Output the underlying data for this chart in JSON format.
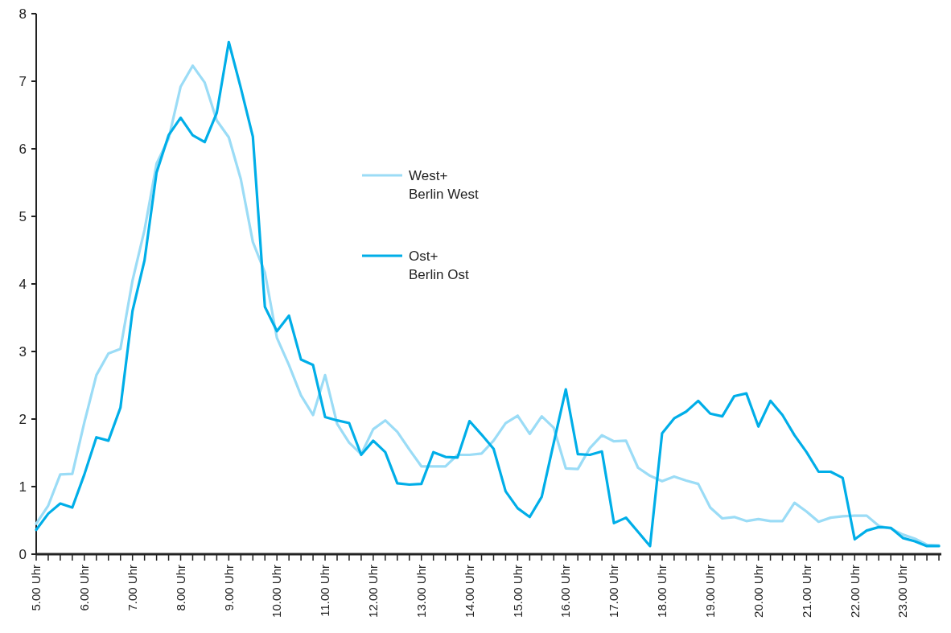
{
  "chart_data": {
    "type": "line",
    "x": [
      5,
      5.25,
      5.5,
      5.75,
      6,
      6.25,
      6.5,
      6.75,
      7,
      7.25,
      7.5,
      7.75,
      8,
      8.25,
      8.5,
      8.75,
      9,
      9.25,
      9.5,
      9.75,
      10,
      10.25,
      10.5,
      10.75,
      11,
      11.25,
      11.5,
      11.75,
      12,
      12.25,
      12.5,
      12.75,
      13,
      13.25,
      13.5,
      13.75,
      14,
      14.25,
      14.5,
      14.75,
      15,
      15.25,
      15.5,
      15.75,
      16,
      16.25,
      16.5,
      16.75,
      17,
      17.25,
      17.5,
      17.75,
      18,
      18.25,
      18.5,
      18.75,
      19,
      19.25,
      19.5,
      19.75,
      20,
      20.25,
      20.5,
      20.75,
      21,
      21.25,
      21.5,
      21.75,
      22,
      22.25,
      22.5,
      22.75,
      23,
      23.25,
      23.5,
      23.75
    ],
    "series": [
      {
        "name": "West+\nBerlin West",
        "color": "#9bdcf6",
        "values": [
          0.45,
          0.72,
          1.18,
          1.19,
          1.95,
          2.65,
          2.97,
          3.04,
          4.05,
          4.8,
          5.78,
          6.15,
          6.92,
          7.23,
          6.98,
          6.42,
          6.17,
          5.55,
          4.62,
          4.17,
          3.2,
          2.8,
          2.35,
          2.06,
          2.65,
          1.93,
          1.65,
          1.48,
          1.85,
          1.98,
          1.81,
          1.55,
          1.3,
          1.3,
          1.3,
          1.47,
          1.47,
          1.49,
          1.68,
          1.94,
          2.05,
          1.78,
          2.04,
          1.87,
          1.27,
          1.26,
          1.57,
          1.76,
          1.67,
          1.68,
          1.28,
          1.16,
          1.08,
          1.15,
          1.09,
          1.04,
          0.69,
          0.53,
          0.55,
          0.49,
          0.52,
          0.49,
          0.49,
          0.76,
          0.63,
          0.48,
          0.54,
          0.56,
          0.57,
          0.57,
          0.42,
          0.38,
          0.29,
          0.23,
          0.14,
          0.13
        ]
      },
      {
        "name": "Ost+\nBerlin Ost",
        "color": "#00aee8",
        "values": [
          0.36,
          0.6,
          0.75,
          0.69,
          1.18,
          1.73,
          1.68,
          2.17,
          3.6,
          4.35,
          5.65,
          6.2,
          6.46,
          6.2,
          6.1,
          6.53,
          7.58,
          6.9,
          6.18,
          3.66,
          3.3,
          3.53,
          2.88,
          2.8,
          2.03,
          1.98,
          1.94,
          1.47,
          1.68,
          1.51,
          1.05,
          1.03,
          1.04,
          1.51,
          1.44,
          1.43,
          1.97,
          1.77,
          1.56,
          0.93,
          0.68,
          0.55,
          0.85,
          1.65,
          2.44,
          1.48,
          1.47,
          1.52,
          0.46,
          0.54,
          0.33,
          0.12,
          1.79,
          2.01,
          2.11,
          2.27,
          2.08,
          2.04,
          2.34,
          2.38,
          1.89,
          2.27,
          2.06,
          1.76,
          1.51,
          1.22,
          1.22,
          1.13,
          0.22,
          0.35,
          0.4,
          0.39,
          0.24,
          0.19,
          0.12,
          0.12
        ]
      }
    ],
    "xlim": [
      5,
      23.8
    ],
    "xticks": [
      {
        "value": 5,
        "label": "5.00 Uhr"
      },
      {
        "value": 5.25,
        "label": null
      },
      {
        "value": 5.5,
        "label": null
      },
      {
        "value": 5.75,
        "label": null
      },
      {
        "value": 6,
        "label": "6.00 Uhr"
      },
      {
        "value": 6.25,
        "label": null
      },
      {
        "value": 6.5,
        "label": null
      },
      {
        "value": 6.75,
        "label": null
      },
      {
        "value": 7,
        "label": "7.00 Uhr"
      },
      {
        "value": 7.25,
        "label": null
      },
      {
        "value": 7.5,
        "label": null
      },
      {
        "value": 7.75,
        "label": null
      },
      {
        "value": 8,
        "label": "8.00 Uhr"
      },
      {
        "value": 8.25,
        "label": null
      },
      {
        "value": 8.5,
        "label": null
      },
      {
        "value": 8.75,
        "label": null
      },
      {
        "value": 9,
        "label": "9.00 Uhr"
      },
      {
        "value": 9.25,
        "label": null
      },
      {
        "value": 9.5,
        "label": null
      },
      {
        "value": 9.75,
        "label": null
      },
      {
        "value": 10,
        "label": "10.00 Uhr"
      },
      {
        "value": 10.25,
        "label": null
      },
      {
        "value": 10.5,
        "label": null
      },
      {
        "value": 10.75,
        "label": null
      },
      {
        "value": 11,
        "label": "11.00 Uhr"
      },
      {
        "value": 11.25,
        "label": null
      },
      {
        "value": 11.5,
        "label": null
      },
      {
        "value": 11.75,
        "label": null
      },
      {
        "value": 12,
        "label": "12.00 Uhr"
      },
      {
        "value": 12.25,
        "label": null
      },
      {
        "value": 12.5,
        "label": null
      },
      {
        "value": 12.75,
        "label": null
      },
      {
        "value": 13,
        "label": "13.00 Uhr"
      },
      {
        "value": 13.25,
        "label": null
      },
      {
        "value": 13.5,
        "label": null
      },
      {
        "value": 13.75,
        "label": null
      },
      {
        "value": 14,
        "label": "14.00 Uhr"
      },
      {
        "value": 14.25,
        "label": null
      },
      {
        "value": 14.5,
        "label": null
      },
      {
        "value": 14.75,
        "label": null
      },
      {
        "value": 15,
        "label": "15.00 Uhr"
      },
      {
        "value": 15.25,
        "label": null
      },
      {
        "value": 15.5,
        "label": null
      },
      {
        "value": 15.75,
        "label": null
      },
      {
        "value": 16,
        "label": "16.00 Uhr"
      },
      {
        "value": 16.25,
        "label": null
      },
      {
        "value": 16.5,
        "label": null
      },
      {
        "value": 16.75,
        "label": null
      },
      {
        "value": 17,
        "label": "17.00 Uhr"
      },
      {
        "value": 17.25,
        "label": null
      },
      {
        "value": 17.5,
        "label": null
      },
      {
        "value": 17.75,
        "label": null
      },
      {
        "value": 18,
        "label": "18.00 Uhr"
      },
      {
        "value": 18.25,
        "label": null
      },
      {
        "value": 18.5,
        "label": null
      },
      {
        "value": 18.75,
        "label": null
      },
      {
        "value": 19,
        "label": "19.00 Uhr"
      },
      {
        "value": 19.25,
        "label": null
      },
      {
        "value": 19.5,
        "label": null
      },
      {
        "value": 19.75,
        "label": null
      },
      {
        "value": 20,
        "label": "20.00 Uhr"
      },
      {
        "value": 20.25,
        "label": null
      },
      {
        "value": 20.5,
        "label": null
      },
      {
        "value": 20.75,
        "label": null
      },
      {
        "value": 21,
        "label": "21.00 Uhr"
      },
      {
        "value": 21.25,
        "label": null
      },
      {
        "value": 21.5,
        "label": null
      },
      {
        "value": 21.75,
        "label": null
      },
      {
        "value": 22,
        "label": "22.00 Uhr"
      },
      {
        "value": 22.25,
        "label": null
      },
      {
        "value": 22.5,
        "label": null
      },
      {
        "value": 22.75,
        "label": null
      },
      {
        "value": 23,
        "label": "23.00 Uhr"
      },
      {
        "value": 23.25,
        "label": null
      },
      {
        "value": 23.5,
        "label": null
      },
      {
        "value": 23.75,
        "label": null
      }
    ],
    "ylim": [
      0,
      8
    ],
    "yticks": [
      0,
      1,
      2,
      3,
      4,
      5,
      6,
      7,
      8
    ],
    "legend": "top",
    "marker": "none",
    "line_style": "solid",
    "grid": false
  }
}
